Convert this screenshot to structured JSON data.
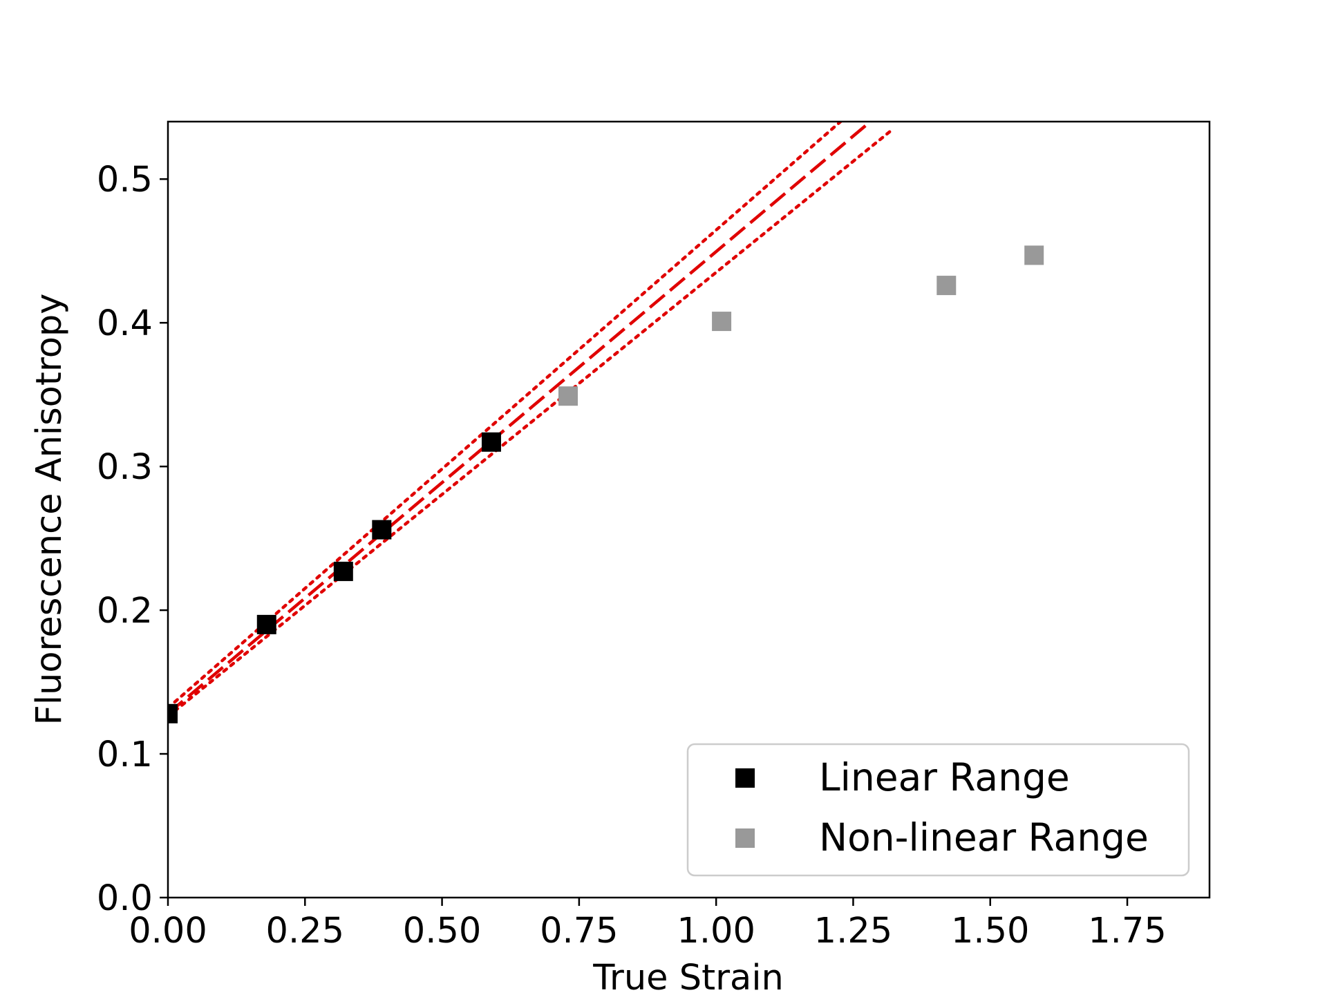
{
  "chart_data": {
    "type": "scatter",
    "xlabel": "True Strain",
    "ylabel": "Fluorescence Anisotropy",
    "xlim": [
      0,
      1.9
    ],
    "ylim": [
      0,
      0.54
    ],
    "xticks": [
      "0.00",
      "0.25",
      "0.50",
      "0.75",
      "1.00",
      "1.25",
      "1.50",
      "1.75"
    ],
    "yticks": [
      "0.0",
      "0.1",
      "0.2",
      "0.3",
      "0.4",
      "0.5"
    ],
    "grid": false,
    "legend_position": "bottom-right",
    "series": [
      {
        "name": "Linear Range",
        "marker": "square",
        "color": "#000000",
        "points": [
          {
            "x": 0.0,
            "y": 0.128
          },
          {
            "x": 0.18,
            "y": 0.19
          },
          {
            "x": 0.32,
            "y": 0.227
          },
          {
            "x": 0.39,
            "y": 0.256
          },
          {
            "x": 0.59,
            "y": 0.317
          }
        ]
      },
      {
        "name": "Non-linear Range",
        "marker": "square",
        "color": "#999999",
        "points": [
          {
            "x": 0.73,
            "y": 0.349
          },
          {
            "x": 1.01,
            "y": 0.401
          },
          {
            "x": 1.42,
            "y": 0.426
          },
          {
            "x": 1.58,
            "y": 0.447
          }
        ]
      }
    ],
    "lines": [
      {
        "role": "fit",
        "style": "dashed",
        "color": "#e00000",
        "x": [
          0,
          1.3
        ],
        "y": [
          0.128,
          0.546
        ]
      },
      {
        "role": "upper-bound",
        "style": "dotted",
        "color": "#e00000",
        "x": [
          0,
          1.245
        ],
        "y": [
          0.132,
          0.546
        ]
      },
      {
        "role": "lower-bound",
        "style": "dotted",
        "color": "#e00000",
        "x": [
          0,
          1.32
        ],
        "y": [
          0.126,
          0.534
        ]
      }
    ]
  }
}
